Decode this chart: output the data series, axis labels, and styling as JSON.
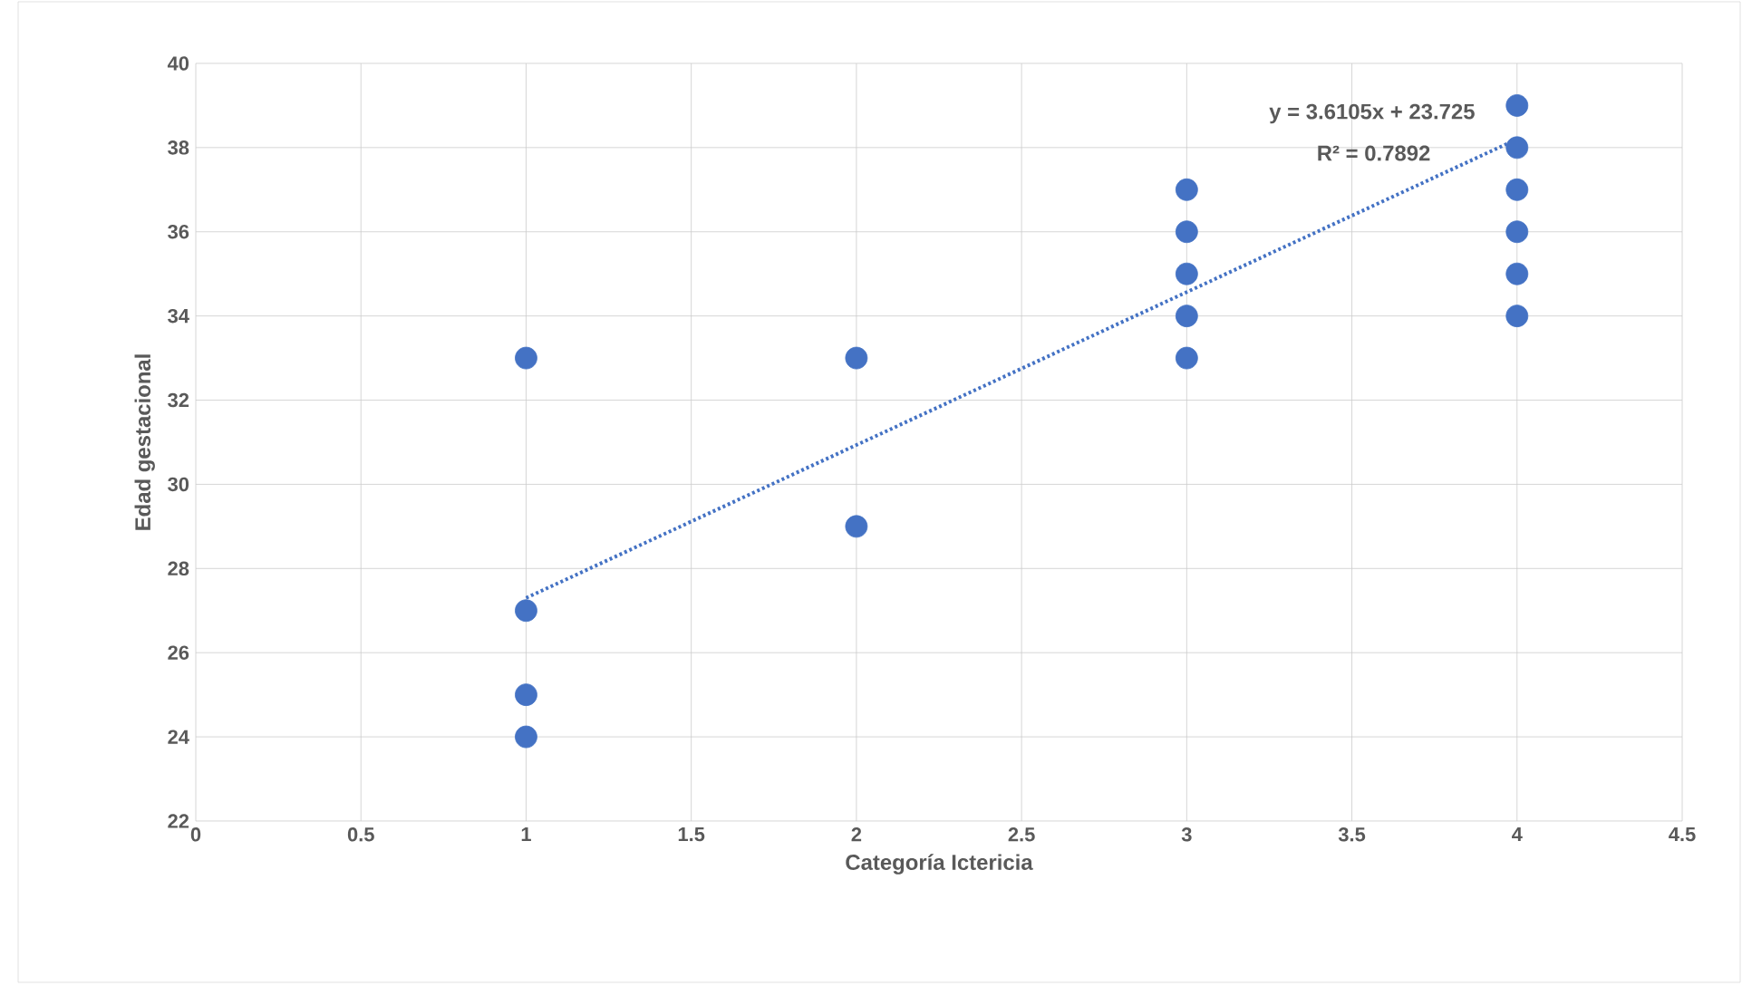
{
  "chart_data": {
    "type": "scatter",
    "xlabel": "Categoría Ictericia",
    "ylabel": "Edad gestacional",
    "series": [
      {
        "color": "#4472c4",
        "x": [
          1,
          1,
          1,
          1,
          2,
          2,
          3,
          3,
          3,
          3,
          3,
          4,
          4,
          4,
          4,
          4,
          4
        ],
        "values": [
          33,
          27,
          25,
          24,
          33,
          29,
          37,
          36,
          35,
          34,
          33,
          39,
          38,
          37,
          36,
          35,
          34
        ]
      },
      {
        "type": "line",
        "line_style": "dotted",
        "marker": "none",
        "color": "#4472c4",
        "x": [
          1,
          4
        ],
        "values": [
          27.3,
          38.2
        ]
      }
    ],
    "marker": "circle",
    "xlim": [
      0,
      4.5
    ],
    "ylim": [
      22,
      40
    ],
    "xticks": [
      0,
      0.5,
      1,
      1.5,
      2,
      2.5,
      3,
      3.5,
      4,
      4.5
    ],
    "yticks": [
      22,
      24,
      26,
      28,
      30,
      32,
      34,
      36,
      38,
      40
    ],
    "grid": true,
    "annotations": [
      "y = 3.6105x + 23.725",
      "R² = 0.7892"
    ]
  }
}
